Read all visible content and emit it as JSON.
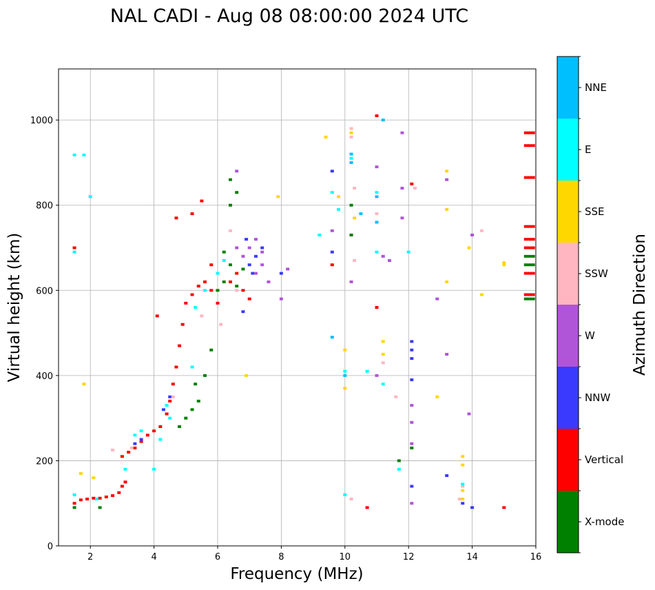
{
  "chart_data": {
    "type": "scatter",
    "title": "NAL CADI - Aug 08 08:00:00 2024 UTC",
    "xlabel": "Frequency (MHz)",
    "ylabel": "Virtual height (km)",
    "xlim": [
      1,
      16
    ],
    "ylim": [
      0,
      1120
    ],
    "xticks": [
      2,
      4,
      6,
      8,
      10,
      12,
      14,
      16
    ],
    "yticks": [
      0,
      200,
      400,
      600,
      800,
      1000
    ],
    "grid": true,
    "colorbar": {
      "label": "Azimuth Direction",
      "categories": [
        {
          "name": "X-mode",
          "color": "#008000"
        },
        {
          "name": "Vertical",
          "color": "#ff0000"
        },
        {
          "name": "NNW",
          "color": "#3a3aff"
        },
        {
          "name": "W",
          "color": "#b054d8"
        },
        {
          "name": "SSW",
          "color": "#ffb6c1"
        },
        {
          "name": "SSE",
          "color": "#ffd700"
        },
        {
          "name": "E",
          "color": "#00ffff"
        },
        {
          "name": "NNE",
          "color": "#00bfff"
        }
      ]
    },
    "series": [
      {
        "name": "Vertical",
        "points": [
          [
            1.5,
            100
          ],
          [
            1.7,
            108
          ],
          [
            1.9,
            110
          ],
          [
            2.1,
            112
          ],
          [
            2.3,
            112
          ],
          [
            2.5,
            115
          ],
          [
            2.7,
            118
          ],
          [
            2.9,
            125
          ],
          [
            3.0,
            140
          ],
          [
            3.1,
            150
          ],
          [
            3.0,
            210
          ],
          [
            3.2,
            220
          ],
          [
            3.4,
            230
          ],
          [
            3.6,
            245
          ],
          [
            3.8,
            260
          ],
          [
            4.0,
            270
          ],
          [
            4.2,
            280
          ],
          [
            4.4,
            310
          ],
          [
            4.5,
            340
          ],
          [
            4.6,
            380
          ],
          [
            4.7,
            420
          ],
          [
            4.8,
            470
          ],
          [
            4.9,
            520
          ],
          [
            5.0,
            570
          ],
          [
            5.2,
            590
          ],
          [
            5.4,
            610
          ],
          [
            5.6,
            620
          ],
          [
            5.8,
            600
          ],
          [
            6.0,
            570
          ],
          [
            6.4,
            620
          ],
          [
            6.6,
            640
          ],
          [
            6.8,
            600
          ],
          [
            7.0,
            580
          ],
          [
            1.5,
            700
          ],
          [
            4.7,
            770
          ],
          [
            5.2,
            780
          ],
          [
            5.5,
            810
          ],
          [
            5.8,
            660
          ],
          [
            9.6,
            660
          ],
          [
            10.2,
            730
          ],
          [
            10.7,
            90
          ],
          [
            11.0,
            560
          ],
          [
            11.0,
            1010
          ],
          [
            12.1,
            850
          ],
          [
            15.0,
            90
          ],
          [
            15.8,
            970
          ],
          [
            15.8,
            940
          ],
          [
            15.8,
            865
          ],
          [
            15.8,
            750
          ],
          [
            15.8,
            720
          ],
          [
            15.8,
            700
          ],
          [
            15.8,
            640
          ],
          [
            15.8,
            590
          ],
          [
            4.1,
            540
          ]
        ]
      },
      {
        "name": "X-mode",
        "points": [
          [
            1.5,
            90
          ],
          [
            2.3,
            90
          ],
          [
            4.8,
            280
          ],
          [
            5.0,
            300
          ],
          [
            5.2,
            320
          ],
          [
            5.4,
            340
          ],
          [
            5.6,
            400
          ],
          [
            5.8,
            460
          ],
          [
            6.0,
            600
          ],
          [
            6.2,
            620
          ],
          [
            6.4,
            660
          ],
          [
            6.6,
            610
          ],
          [
            6.8,
            650
          ],
          [
            6.2,
            690
          ],
          [
            6.4,
            800
          ],
          [
            6.6,
            830
          ],
          [
            6.4,
            860
          ],
          [
            10.2,
            800
          ],
          [
            10.2,
            730
          ],
          [
            11.7,
            200
          ],
          [
            12.1,
            230
          ],
          [
            15.8,
            680
          ],
          [
            15.8,
            660
          ],
          [
            15.8,
            580
          ],
          [
            5.3,
            380
          ]
        ]
      },
      {
        "name": "NNW",
        "points": [
          [
            3.4,
            240
          ],
          [
            3.6,
            250
          ],
          [
            4.3,
            320
          ],
          [
            4.5,
            350
          ],
          [
            7.0,
            660
          ],
          [
            7.2,
            680
          ],
          [
            7.4,
            700
          ],
          [
            6.9,
            720
          ],
          [
            7.1,
            640
          ],
          [
            9.6,
            690
          ],
          [
            9.6,
            880
          ],
          [
            12.1,
            480
          ],
          [
            12.1,
            460
          ],
          [
            12.1,
            440
          ],
          [
            12.1,
            390
          ],
          [
            12.1,
            140
          ],
          [
            13.2,
            165
          ],
          [
            13.7,
            100
          ],
          [
            14.0,
            90
          ],
          [
            6.8,
            550
          ],
          [
            8.0,
            640
          ]
        ]
      },
      {
        "name": "W",
        "points": [
          [
            6.6,
            700
          ],
          [
            6.8,
            680
          ],
          [
            7.0,
            700
          ],
          [
            7.2,
            720
          ],
          [
            7.4,
            690
          ],
          [
            7.2,
            640
          ],
          [
            7.4,
            660
          ],
          [
            7.6,
            620
          ],
          [
            8.0,
            580
          ],
          [
            8.2,
            650
          ],
          [
            6.6,
            880
          ],
          [
            9.6,
            740
          ],
          [
            10.2,
            620
          ],
          [
            11.0,
            890
          ],
          [
            11.2,
            680
          ],
          [
            11.4,
            670
          ],
          [
            11.8,
            970
          ],
          [
            11.8,
            840
          ],
          [
            11.8,
            770
          ],
          [
            12.1,
            330
          ],
          [
            12.1,
            290
          ],
          [
            12.1,
            240
          ],
          [
            12.1,
            100
          ],
          [
            12.9,
            580
          ],
          [
            13.2,
            860
          ],
          [
            13.2,
            450
          ],
          [
            13.9,
            310
          ],
          [
            14.0,
            730
          ],
          [
            11.0,
            400
          ]
        ]
      },
      {
        "name": "SSW",
        "points": [
          [
            2.7,
            225
          ],
          [
            3.3,
            230
          ],
          [
            4.6,
            350
          ],
          [
            5.5,
            540
          ],
          [
            6.1,
            520
          ],
          [
            6.4,
            740
          ],
          [
            6.6,
            600
          ],
          [
            10.2,
            980
          ],
          [
            10.2,
            960
          ],
          [
            10.3,
            840
          ],
          [
            10.3,
            670
          ],
          [
            11.2,
            430
          ],
          [
            11.6,
            350
          ],
          [
            11.0,
            780
          ],
          [
            12.2,
            840
          ],
          [
            14.3,
            740
          ],
          [
            13.6,
            110
          ],
          [
            13.7,
            140
          ],
          [
            10.2,
            110
          ]
        ]
      },
      {
        "name": "SSE",
        "points": [
          [
            1.7,
            170
          ],
          [
            2.1,
            160
          ],
          [
            1.8,
            380
          ],
          [
            9.4,
            960
          ],
          [
            9.8,
            820
          ],
          [
            10.2,
            970
          ],
          [
            10.3,
            770
          ],
          [
            10.0,
            460
          ],
          [
            10.0,
            370
          ],
          [
            11.2,
            480
          ],
          [
            11.2,
            450
          ],
          [
            12.9,
            350
          ],
          [
            13.2,
            880
          ],
          [
            13.2,
            790
          ],
          [
            13.2,
            620
          ],
          [
            13.7,
            210
          ],
          [
            13.7,
            190
          ],
          [
            13.7,
            130
          ],
          [
            13.7,
            110
          ],
          [
            13.9,
            700
          ],
          [
            14.3,
            590
          ],
          [
            15.0,
            665
          ],
          [
            15.0,
            660
          ],
          [
            7.9,
            820
          ],
          [
            6.9,
            400
          ]
        ]
      },
      {
        "name": "E",
        "points": [
          [
            1.5,
            690
          ],
          [
            1.5,
            918
          ],
          [
            1.8,
            918
          ],
          [
            2.0,
            820
          ],
          [
            1.5,
            120
          ],
          [
            2.2,
            110
          ],
          [
            3.1,
            180
          ],
          [
            3.4,
            260
          ],
          [
            3.6,
            270
          ],
          [
            4.0,
            180
          ],
          [
            4.2,
            250
          ],
          [
            4.4,
            330
          ],
          [
            5.2,
            420
          ],
          [
            5.3,
            560
          ],
          [
            5.6,
            600
          ],
          [
            6.0,
            640
          ],
          [
            6.2,
            670
          ],
          [
            9.2,
            730
          ],
          [
            9.6,
            830
          ],
          [
            9.8,
            790
          ],
          [
            10.2,
            910
          ],
          [
            10.2,
            900
          ],
          [
            10.0,
            410
          ],
          [
            10.7,
            410
          ],
          [
            11.0,
            830
          ],
          [
            11.0,
            760
          ],
          [
            11.0,
            690
          ],
          [
            11.2,
            380
          ],
          [
            11.7,
            180
          ],
          [
            12.0,
            690
          ],
          [
            13.7,
            145
          ],
          [
            4.5,
            300
          ],
          [
            10.0,
            120
          ]
        ]
      },
      {
        "name": "NNE",
        "points": [
          [
            10.2,
            920
          ],
          [
            10.2,
            900
          ],
          [
            11.0,
            760
          ],
          [
            11.0,
            820
          ],
          [
            11.2,
            1000
          ],
          [
            10.5,
            780
          ],
          [
            9.6,
            490
          ],
          [
            10.0,
            400
          ]
        ]
      }
    ]
  }
}
